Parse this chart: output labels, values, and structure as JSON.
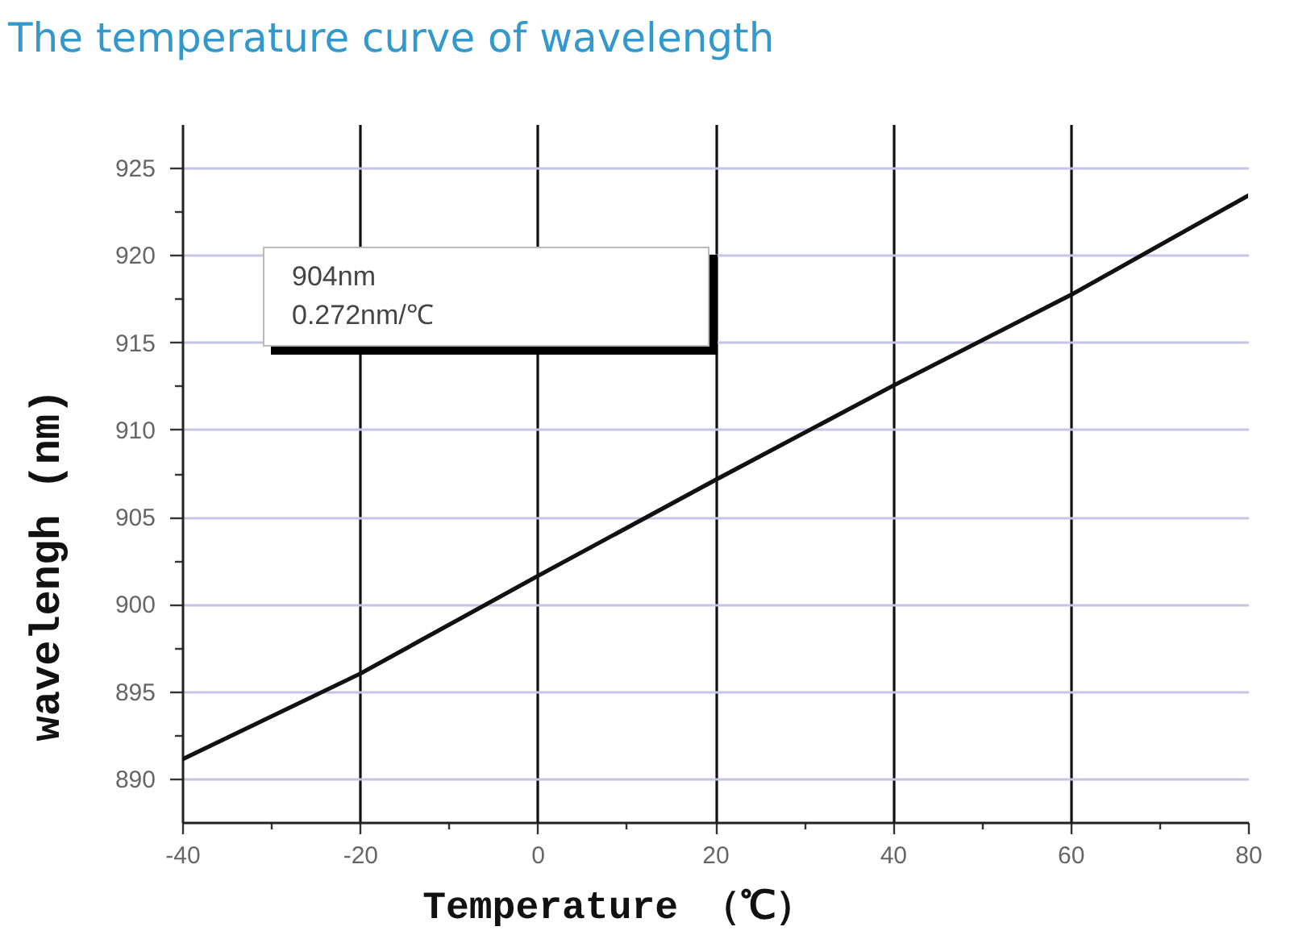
{
  "chart_data": {
    "type": "line",
    "title": "The temperature curve of wavelength",
    "xlabel": "Temperature （℃）",
    "ylabel": "wavelengh (nm)",
    "annotations": [
      "904nm",
      "0.272nm/℃"
    ],
    "x": [
      -40,
      -20,
      0,
      20,
      40,
      60,
      80
    ],
    "values": [
      891.1,
      896,
      901.6,
      907.1,
      912.5,
      917.7,
      923.4
    ],
    "color": "#111111",
    "xlim": [
      -40,
      80
    ],
    "xticks": [
      -40,
      {
        "value": -30,
        "label": null
      },
      -20,
      {
        "value": -10,
        "label": null
      },
      0,
      {
        "value": 10,
        "label": null
      },
      20,
      {
        "value": 30,
        "label": null
      },
      40,
      {
        "value": 50,
        "label": null
      },
      60,
      {
        "value": 70,
        "label": null
      },
      80
    ],
    "ylim": [
      887.5,
      927.5
    ],
    "yticks": [
      890,
      {
        "value": 892.5,
        "label": null
      },
      895,
      {
        "value": 897.5,
        "label": null
      },
      900,
      {
        "value": 902.5,
        "label": null
      },
      905,
      {
        "value": 907.5,
        "label": null
      },
      910,
      {
        "value": 912.5,
        "label": null
      },
      915,
      {
        "value": 917.5,
        "label": null
      },
      920,
      {
        "value": 922.5,
        "label": null
      },
      925
    ],
    "grid": true
  }
}
